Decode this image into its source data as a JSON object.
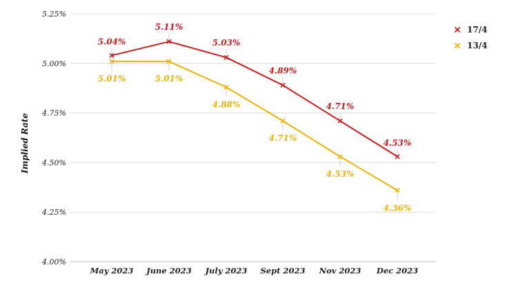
{
  "chart_data": {
    "type": "line",
    "categories": [
      "May 2023",
      "June 2023",
      "July 2023",
      "Sept 2023",
      "Nov 2023",
      "Dec 2023"
    ],
    "ylabel": "Implied Rate",
    "ylim": [
      4.0,
      5.25
    ],
    "yticks": [
      4.0,
      4.25,
      4.5,
      4.75,
      5.0,
      5.25
    ],
    "ytick_labels": [
      "4.00%",
      "4.25%",
      "4.50%",
      "4.75%",
      "5.00%",
      "5.25%"
    ],
    "grid": "horizontal",
    "legend_position": "top-right",
    "series": [
      {
        "name": "17/4",
        "color": "#d7191c",
        "marker": "x",
        "values": [
          5.04,
          5.11,
          5.03,
          4.89,
          4.71,
          4.53
        ],
        "labels": [
          "5.04%",
          "5.11%",
          "5.03%",
          "4.89%",
          "4.71%",
          "4.53%"
        ],
        "label_position": "above"
      },
      {
        "name": "13/4",
        "color": "#f0b400",
        "marker": "x",
        "values": [
          5.01,
          5.01,
          4.88,
          4.71,
          4.53,
          4.36
        ],
        "labels": [
          "5.01%",
          "5.01%",
          "4.88%",
          "4.71%",
          "4.53%",
          "4.36%"
        ],
        "label_position": "below"
      }
    ]
  }
}
